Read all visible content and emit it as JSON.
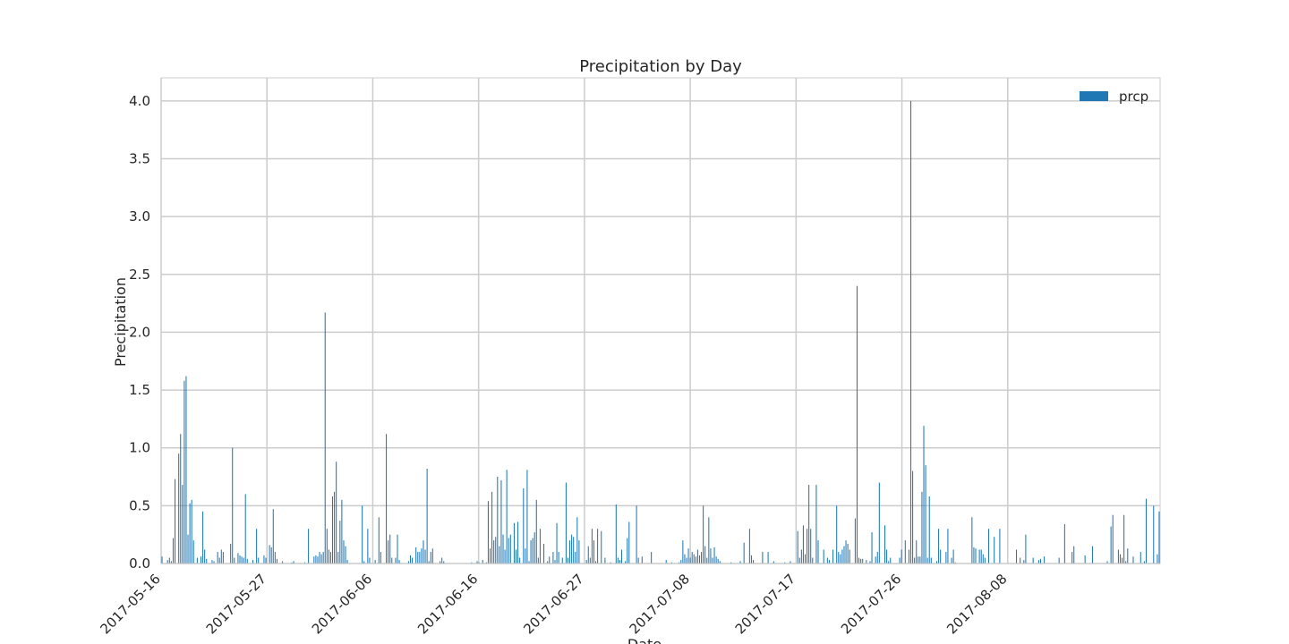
{
  "chart_data": {
    "type": "bar",
    "title": "Precipitation by Day",
    "xlabel": "Date",
    "ylabel": "Precipitation",
    "ylim": [
      0,
      4.2
    ],
    "yticks": [
      "0.0",
      "0.5",
      "1.0",
      "1.5",
      "2.0",
      "2.5",
      "3.0",
      "3.5",
      "4.0"
    ],
    "xticks": [
      "2017-05-16",
      "2017-05-27",
      "2017-06-06",
      "2017-06-16",
      "2017-06-27",
      "2017-07-08",
      "2017-07-17",
      "2017-07-26",
      "2017-08-08"
    ],
    "grid": true,
    "legend": "top-right",
    "bar_color": "#1f77b4",
    "series": [
      {
        "name": "prcp",
        "values": [
          0.06,
          0.0,
          0.0,
          0.03,
          0.05,
          0.02,
          0.22,
          0.73,
          0.0,
          0.95,
          1.12,
          0.68,
          1.58,
          1.62,
          0.25,
          0.52,
          0.55,
          0.2,
          0.0,
          0.05,
          0.0,
          0.06,
          0.45,
          0.12,
          0.04,
          0.0,
          0.0,
          0.03,
          0.02,
          0.0,
          0.1,
          0.05,
          0.12,
          0.1,
          0.0,
          0.0,
          0.0,
          0.17,
          1.0,
          0.05,
          0.0,
          0.09,
          0.07,
          0.06,
          0.05,
          0.6,
          0.04,
          0.0,
          0.0,
          0.03,
          0.0,
          0.3,
          0.05,
          0.0,
          0.0,
          0.07,
          0.05,
          0.0,
          0.16,
          0.14,
          0.47,
          0.1,
          0.04,
          0.0,
          0.0,
          0.02,
          0.0,
          0.0,
          0.0,
          0.0,
          0.01,
          0.02,
          0.0,
          0.0,
          0.0,
          0.0,
          0.0,
          0.01,
          0.0,
          0.3,
          0.0,
          0.0,
          0.06,
          0.07,
          0.06,
          0.1,
          0.08,
          0.1,
          2.17,
          0.3,
          0.12,
          0.1,
          0.58,
          0.62,
          0.88,
          0.1,
          0.37,
          0.55,
          0.2,
          0.15,
          0.03,
          0.0,
          0.0,
          0.0,
          0.0,
          0.0,
          0.0,
          0.0,
          0.5,
          0.02,
          0.0,
          0.3,
          0.05,
          0.0,
          0.0,
          0.03,
          0.0,
          0.4,
          0.1,
          0.0,
          0.0,
          1.12,
          0.2,
          0.25,
          0.05,
          0.0,
          0.05,
          0.25,
          0.03,
          0.0,
          0.0,
          0.0,
          0.0,
          0.02,
          0.07,
          0.05,
          0.0,
          0.14,
          0.1,
          0.1,
          0.13,
          0.2,
          0.12,
          0.82,
          0.02,
          0.1,
          0.13,
          0.0,
          0.0,
          0.0,
          0.02,
          0.05,
          0.02,
          0.0,
          0.0,
          0.0,
          0.0,
          0.0,
          0.0,
          0.0,
          0.0,
          0.0,
          0.0,
          0.0,
          0.0,
          0.0,
          0.0,
          0.01,
          0.0,
          0.0,
          0.02,
          0.01,
          0.0,
          0.03,
          0.0,
          0.01,
          0.54,
          0.13,
          0.62,
          0.2,
          0.23,
          0.75,
          0.15,
          0.72,
          0.25,
          0.12,
          0.81,
          0.22,
          0.25,
          0.0,
          0.35,
          0.12,
          0.36,
          0.05,
          0.0,
          0.65,
          0.13,
          0.81,
          0.02,
          0.2,
          0.22,
          0.27,
          0.55,
          0.05,
          0.3,
          0.0,
          0.17,
          0.0,
          0.02,
          0.06,
          0.0,
          0.1,
          0.03,
          0.35,
          0.1,
          0.0,
          0.05,
          0.0,
          0.7,
          0.05,
          0.2,
          0.25,
          0.23,
          0.1,
          0.4,
          0.2,
          0.0,
          0.0,
          0.0,
          0.03,
          0.15,
          0.05,
          0.3,
          0.2,
          0.02,
          0.3,
          0.0,
          0.28,
          0.0,
          0.05,
          0.0,
          0.0,
          0.01,
          0.0,
          0.0,
          0.51,
          0.05,
          0.03,
          0.12,
          0.0,
          0.02,
          0.22,
          0.36,
          0.0,
          0.0,
          0.0,
          0.5,
          0.05,
          0.0,
          0.06,
          0.0,
          0.0,
          0.0,
          0.0,
          0.1,
          0.0,
          0.0,
          0.0,
          0.0,
          0.0,
          0.0,
          0.0,
          0.03,
          0.0,
          0.0,
          0.01,
          0.0,
          0.0,
          0.0,
          0.01,
          0.03,
          0.2,
          0.08,
          0.05,
          0.13,
          0.05,
          0.1,
          0.08,
          0.06,
          0.12,
          0.07,
          0.1,
          0.5,
          0.15,
          0.05,
          0.4,
          0.13,
          0.05,
          0.14,
          0.06,
          0.04,
          0.02,
          0.0,
          0.0,
          0.0,
          0.0,
          0.0,
          0.01,
          0.0,
          0.0,
          0.0,
          0.0,
          0.02,
          0.0,
          0.18,
          0.0,
          0.0,
          0.3,
          0.07,
          0.03,
          0.0,
          0.0,
          0.0,
          0.0,
          0.1,
          0.0,
          0.0,
          0.1,
          0.0,
          0.0,
          0.02,
          0.0,
          0.0,
          0.0,
          0.0,
          0.0,
          0.01,
          0.0,
          0.0,
          0.02,
          0.0,
          0.0,
          0.0,
          0.28,
          0.05,
          0.12,
          0.33,
          0.08,
          0.3,
          0.68,
          0.3,
          0.05,
          0.0,
          0.68,
          0.2,
          0.0,
          0.0,
          0.12,
          0.0,
          0.05,
          0.03,
          0.0,
          0.12,
          0.0,
          0.5,
          0.1,
          0.08,
          0.12,
          0.15,
          0.2,
          0.17,
          0.12,
          0.0,
          0.0,
          0.39,
          2.4,
          0.05,
          0.04,
          0.04,
          0.0,
          0.03,
          0.0,
          0.02,
          0.27,
          0.0,
          0.06,
          0.1,
          0.7,
          0.0,
          0.0,
          0.33,
          0.12,
          0.02,
          0.05,
          0.0,
          0.0,
          0.0,
          0.0,
          0.05,
          0.12,
          0.0,
          0.2,
          0.0,
          0.12,
          4.0,
          0.8,
          0.05,
          0.2,
          0.06,
          0.06,
          0.62,
          1.19,
          0.85,
          0.05,
          0.58,
          0.05,
          0.0,
          0.0,
          0.02,
          0.3,
          0.12,
          0.0,
          0.0,
          0.1,
          0.3,
          0.0,
          0.05,
          0.12,
          0.01,
          0.0,
          0.0,
          0.0,
          0.0,
          0.0,
          0.0,
          0.0,
          0.0,
          0.4,
          0.14,
          0.13,
          0.0,
          0.12,
          0.12,
          0.08,
          0.05,
          0.0,
          0.3,
          0.0,
          0.0,
          0.23,
          0.0,
          0.0,
          0.3,
          0.0,
          0.0,
          0.0,
          0.0,
          0.0,
          0.0,
          0.0,
          0.0,
          0.12,
          0.0,
          0.05,
          0.0,
          0.03,
          0.25,
          0.0,
          0.0,
          0.0,
          0.05,
          0.0,
          0.0,
          0.03,
          0.04,
          0.0,
          0.06,
          0.0,
          0.0,
          0.0,
          0.0,
          0.0,
          0.0,
          0.0,
          0.05,
          0.0,
          0.0,
          0.34,
          0.0,
          0.0,
          0.0,
          0.1,
          0.15,
          0.0,
          0.0,
          0.0,
          0.0,
          0.0,
          0.07,
          0.0,
          0.0,
          0.0,
          0.15,
          0.0,
          0.0,
          0.0,
          0.0,
          0.0,
          0.0,
          0.0,
          0.02,
          0.0,
          0.32,
          0.42,
          0.0,
          0.0,
          0.12,
          0.08,
          0.05,
          0.42,
          0.02,
          0.13,
          0.0,
          0.0,
          0.06,
          0.0,
          0.0,
          0.0,
          0.1,
          0.0,
          0.02,
          0.56,
          0.0,
          0.0,
          0.0,
          0.5,
          0.0,
          0.08,
          0.45
        ]
      }
    ]
  }
}
